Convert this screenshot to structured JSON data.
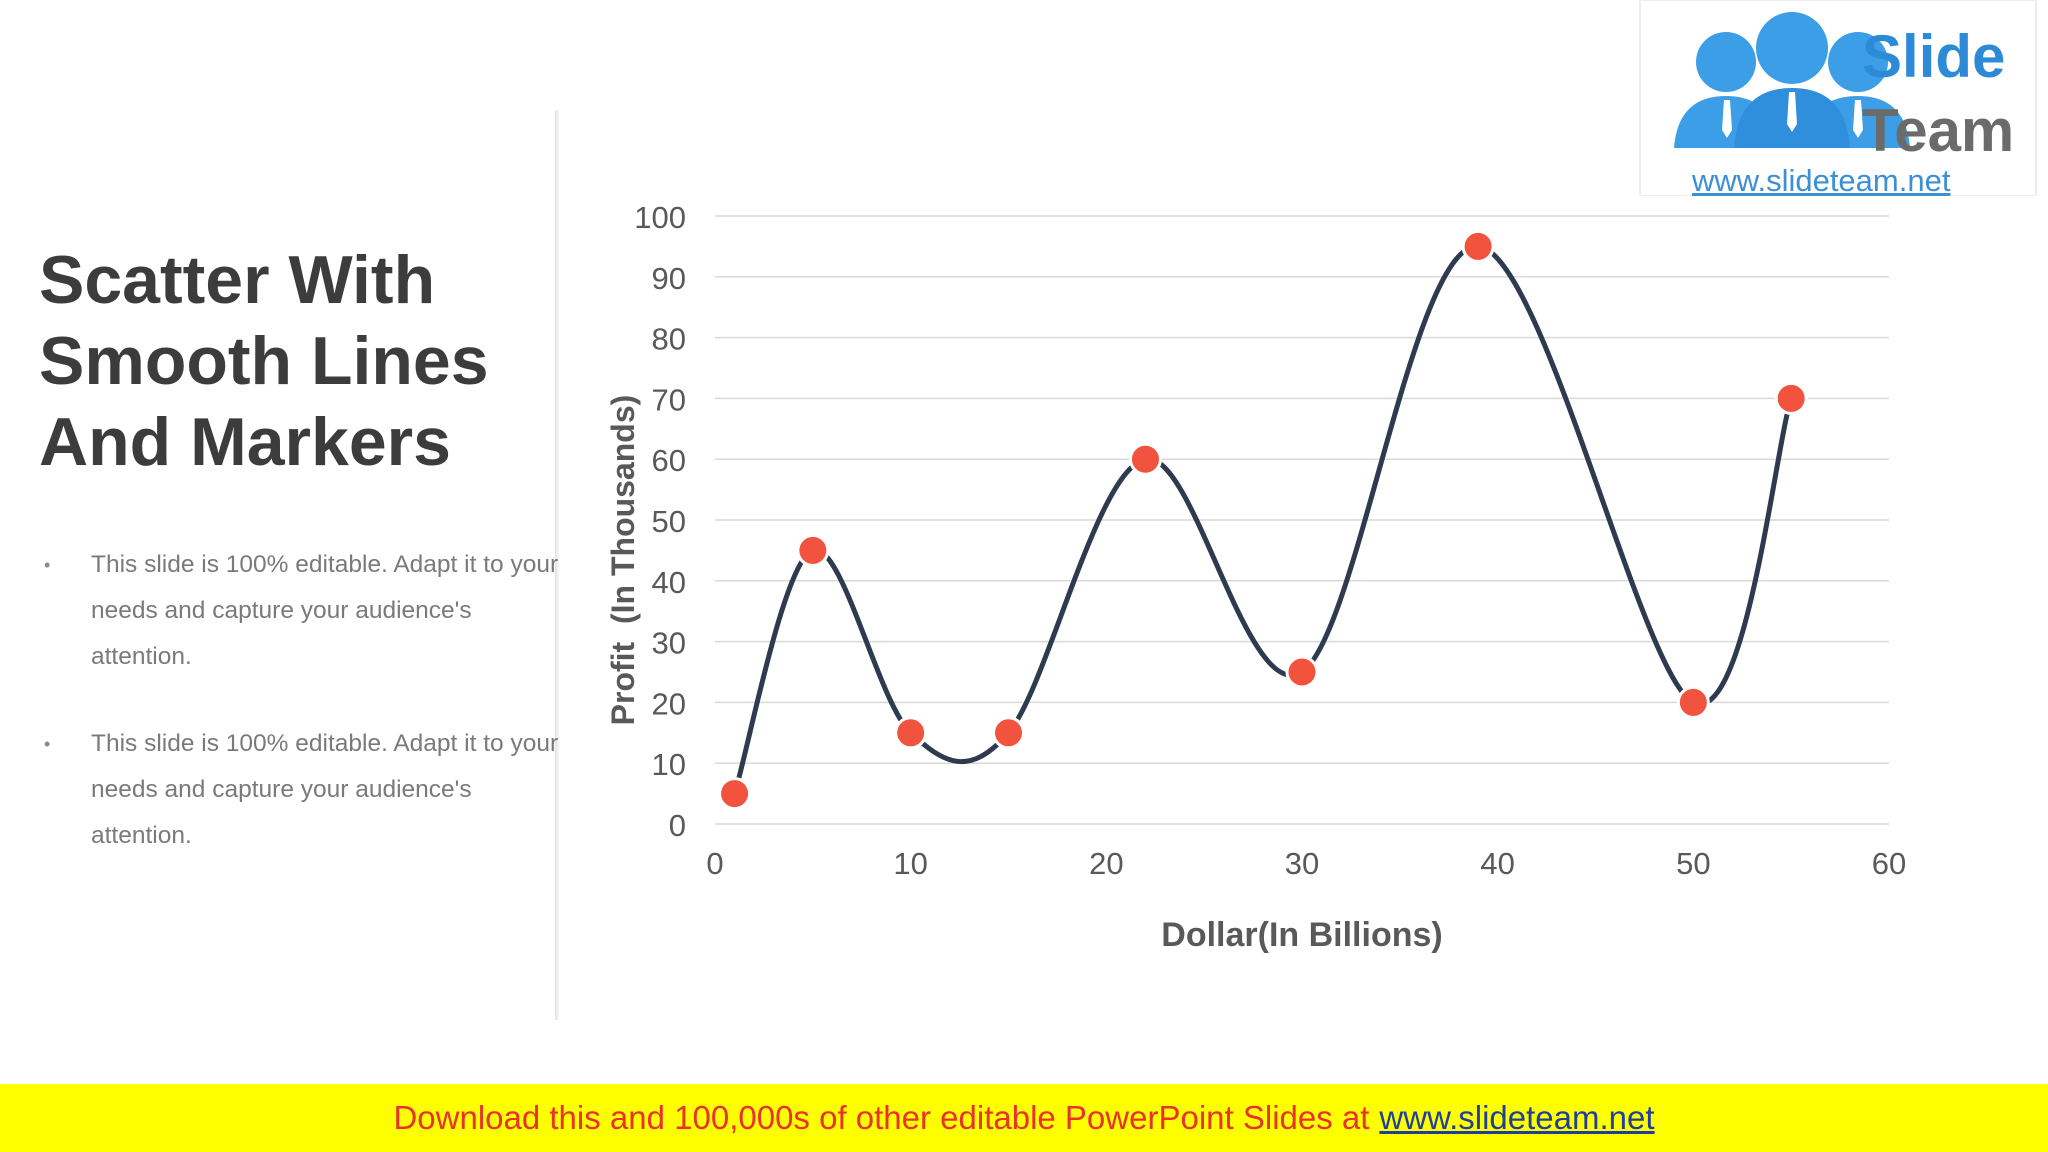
{
  "slide": {
    "title": "Scatter With Smooth Lines And Markers",
    "bullets": [
      "This slide is 100% editable. Adapt it to your needs and capture your audience's attention.",
      "This slide is 100% editable. Adapt it to your needs and capture your audience's attention."
    ],
    "bullet_symbol": "•"
  },
  "logo": {
    "word1": "Slide",
    "word2": "Team",
    "url": "www.slideteam.net"
  },
  "banner": {
    "text": "Download this and 100,000s of other editable PowerPoint Slides at",
    "link": "www.slideteam.net"
  },
  "colors": {
    "line": "#2e3a4f",
    "marker": "#f2533e",
    "grid": "#d9d9d9",
    "axis_text": "#595959",
    "banner_bg": "#ffff00",
    "banner_text": "#e8322a"
  },
  "chart_data": {
    "type": "scatter",
    "subtype": "smooth-lines-markers",
    "xlabel": "Dollar(In Billions)",
    "ylabel": "Profit  (In Thousands)",
    "xlim": [
      0,
      60
    ],
    "ylim": [
      0,
      100
    ],
    "x_ticks": [
      0,
      10,
      20,
      30,
      40,
      50,
      60
    ],
    "y_ticks": [
      0,
      10,
      20,
      30,
      40,
      50,
      60,
      70,
      80,
      90,
      100
    ],
    "grid": "horizontal",
    "legend": "none",
    "x": [
      1,
      5,
      10,
      15,
      22,
      30,
      39,
      50,
      55
    ],
    "y": [
      5,
      45,
      15,
      15,
      60,
      25,
      95,
      20,
      70
    ]
  }
}
